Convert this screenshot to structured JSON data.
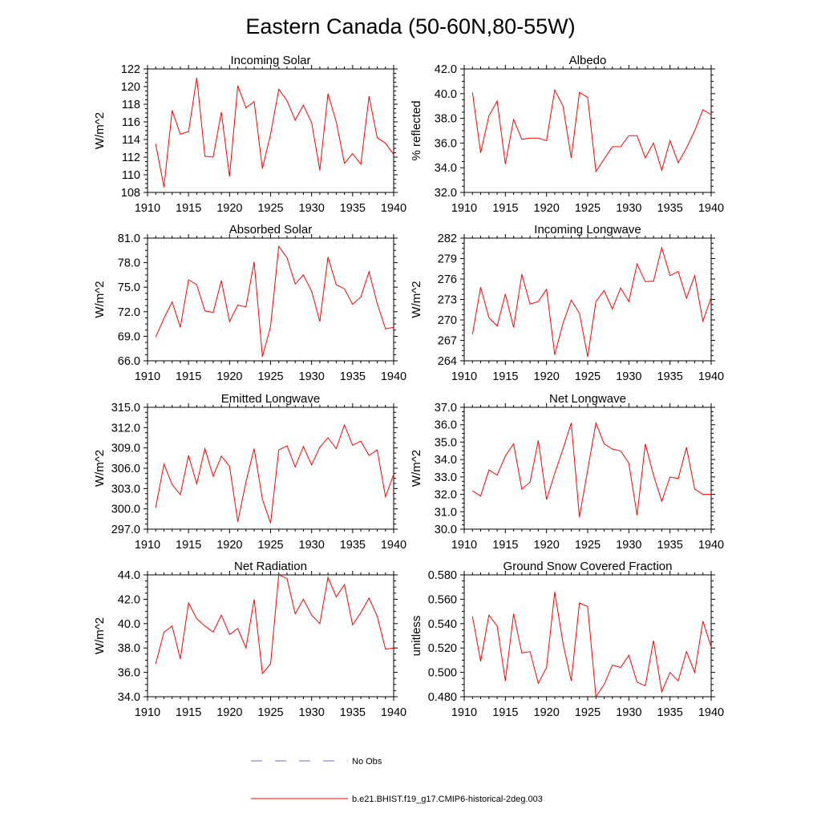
{
  "figure": {
    "title": "Eastern Canada (50-60N,80-55W)"
  },
  "legend": [
    {
      "label": "No Obs",
      "style": "dashed",
      "color": "#6e6ebe"
    },
    {
      "label": "b.e21.BHIST.f19_g17.CMIP6-historical-2deg.003",
      "style": "solid",
      "color": "#ff0000"
    }
  ],
  "chart_data": [
    {
      "type": "line",
      "title": "Incoming Solar",
      "ylabel": "W/m^2",
      "xlim": [
        1910,
        1940
      ],
      "ylim": [
        108,
        122
      ],
      "yticks": [
        "108",
        "110",
        "112",
        "114",
        "116",
        "118",
        "120",
        "122"
      ],
      "xticks": [
        "1910",
        "1915",
        "1920",
        "1925",
        "1930",
        "1935",
        "1940"
      ],
      "color": "#ff0000",
      "x": [
        1911,
        1912,
        1913,
        1914,
        1915,
        1916,
        1917,
        1918,
        1919,
        1920,
        1921,
        1922,
        1923,
        1924,
        1925,
        1926,
        1927,
        1928,
        1929,
        1930,
        1931,
        1932,
        1933,
        1934,
        1935,
        1936,
        1937,
        1938,
        1939,
        1940
      ],
      "values": [
        113.5,
        108.6,
        117.3,
        114.6,
        114.9,
        121.0,
        112.1,
        112.0,
        117.1,
        109.8,
        120.1,
        117.6,
        118.3,
        110.7,
        114.6,
        119.7,
        118.4,
        116.2,
        117.9,
        115.9,
        110.5,
        119.2,
        116.0,
        111.3,
        112.4,
        111.2,
        118.9,
        114.2,
        113.6,
        112.3
      ]
    },
    {
      "type": "line",
      "title": "Albedo",
      "ylabel": "% reflected",
      "xlim": [
        1910,
        1940
      ],
      "ylim": [
        32,
        42
      ],
      "yticks": [
        "32.0",
        "34.0",
        "36.0",
        "38.0",
        "40.0",
        "42.0"
      ],
      "xticks": [
        "1910",
        "1915",
        "1920",
        "1925",
        "1930",
        "1935",
        "1940"
      ],
      "color": "#ff0000",
      "x": [
        1911,
        1912,
        1913,
        1914,
        1915,
        1916,
        1917,
        1918,
        1919,
        1920,
        1921,
        1922,
        1923,
        1924,
        1925,
        1926,
        1927,
        1928,
        1929,
        1930,
        1931,
        1932,
        1933,
        1934,
        1935,
        1936,
        1937,
        1938,
        1939,
        1940
      ],
      "values": [
        40.1,
        35.2,
        38.2,
        39.4,
        34.3,
        37.9,
        36.3,
        36.4,
        36.4,
        36.2,
        40.3,
        39.0,
        34.8,
        40.1,
        39.7,
        33.7,
        34.7,
        35.7,
        35.7,
        36.6,
        36.6,
        34.8,
        36.0,
        33.8,
        36.2,
        34.4,
        35.6,
        37.0,
        38.7,
        38.3
      ]
    },
    {
      "type": "line",
      "title": "Absorbed Solar",
      "ylabel": "W/m^2",
      "xlim": [
        1910,
        1940
      ],
      "ylim": [
        66,
        81
      ],
      "yticks": [
        "66.0",
        "69.0",
        "72.0",
        "75.0",
        "78.0",
        "81.0"
      ],
      "xticks": [
        "1910",
        "1915",
        "1920",
        "1925",
        "1930",
        "1935",
        "1940"
      ],
      "color": "#ff0000",
      "x": [
        1911,
        1912,
        1913,
        1914,
        1915,
        1916,
        1917,
        1918,
        1919,
        1920,
        1921,
        1922,
        1923,
        1924,
        1925,
        1926,
        1927,
        1928,
        1929,
        1930,
        1931,
        1932,
        1933,
        1934,
        1935,
        1936,
        1937,
        1938,
        1939,
        1940
      ],
      "values": [
        68.9,
        71.2,
        73.2,
        70.1,
        75.9,
        75.3,
        72.1,
        71.9,
        75.8,
        70.8,
        72.8,
        72.6,
        78.1,
        66.5,
        70.2,
        80.0,
        78.6,
        75.4,
        76.5,
        74.5,
        70.8,
        78.7,
        75.3,
        74.8,
        72.9,
        73.8,
        76.9,
        73.0,
        69.9,
        70.1
      ]
    },
    {
      "type": "line",
      "title": "Incoming Longwave",
      "ylabel": "W/m^2",
      "xlim": [
        1910,
        1940
      ],
      "ylim": [
        264,
        282
      ],
      "yticks": [
        "264",
        "267",
        "270",
        "273",
        "276",
        "279",
        "282"
      ],
      "xticks": [
        "1910",
        "1915",
        "1920",
        "1925",
        "1930",
        "1935",
        "1940"
      ],
      "color": "#ff0000",
      "x": [
        1911,
        1912,
        1913,
        1914,
        1915,
        1916,
        1917,
        1918,
        1919,
        1920,
        1921,
        1922,
        1923,
        1924,
        1925,
        1926,
        1927,
        1928,
        1929,
        1930,
        1931,
        1932,
        1933,
        1934,
        1935,
        1936,
        1937,
        1938,
        1939,
        1940
      ],
      "values": [
        267.9,
        274.8,
        270.3,
        269.1,
        273.8,
        268.9,
        276.7,
        272.3,
        272.7,
        274.5,
        264.9,
        269.5,
        272.9,
        271.0,
        264.6,
        272.7,
        274.3,
        271.6,
        274.7,
        272.7,
        278.2,
        275.6,
        275.7,
        280.6,
        276.5,
        277.1,
        273.2,
        276.5,
        269.8,
        273.3
      ]
    },
    {
      "type": "line",
      "title": "Emitted Longwave",
      "ylabel": "W/m^2",
      "xlim": [
        1910,
        1940
      ],
      "ylim": [
        297,
        315
      ],
      "yticks": [
        "297.0",
        "300.0",
        "303.0",
        "306.0",
        "309.0",
        "312.0",
        "315.0"
      ],
      "xticks": [
        "1910",
        "1915",
        "1920",
        "1925",
        "1930",
        "1935",
        "1940"
      ],
      "color": "#ff0000",
      "x": [
        1911,
        1912,
        1913,
        1914,
        1915,
        1916,
        1917,
        1918,
        1919,
        1920,
        1921,
        1922,
        1923,
        1924,
        1925,
        1926,
        1927,
        1928,
        1929,
        1930,
        1931,
        1932,
        1933,
        1934,
        1935,
        1936,
        1937,
        1938,
        1939,
        1940
      ],
      "values": [
        300.2,
        306.6,
        303.6,
        302.1,
        307.9,
        303.7,
        308.9,
        304.8,
        307.8,
        306.3,
        298.1,
        304.0,
        308.9,
        301.4,
        297.9,
        308.7,
        309.3,
        306.2,
        309.2,
        306.5,
        309.1,
        310.5,
        308.9,
        312.4,
        309.4,
        310.0,
        307.9,
        308.7,
        301.8,
        305.1
      ]
    },
    {
      "type": "line",
      "title": "Net Longwave",
      "ylabel": "W/m^2",
      "xlim": [
        1910,
        1940
      ],
      "ylim": [
        30,
        37
      ],
      "yticks": [
        "30.0",
        "31.0",
        "32.0",
        "33.0",
        "34.0",
        "35.0",
        "36.0",
        "37.0"
      ],
      "xticks": [
        "1910",
        "1915",
        "1920",
        "1925",
        "1930",
        "1935",
        "1940"
      ],
      "color": "#ff0000",
      "x": [
        1911,
        1912,
        1913,
        1914,
        1915,
        1916,
        1917,
        1918,
        1919,
        1920,
        1921,
        1922,
        1923,
        1924,
        1925,
        1926,
        1927,
        1928,
        1929,
        1930,
        1931,
        1932,
        1933,
        1934,
        1935,
        1936,
        1937,
        1938,
        1939,
        1940
      ],
      "values": [
        32.2,
        31.9,
        33.4,
        33.1,
        34.2,
        34.9,
        32.3,
        32.7,
        35.1,
        31.7,
        33.2,
        34.6,
        36.1,
        30.7,
        33.4,
        36.1,
        34.9,
        34.6,
        34.5,
        33.8,
        30.8,
        34.9,
        33.1,
        31.6,
        33.0,
        32.9,
        34.7,
        32.3,
        32.0,
        32.0
      ]
    },
    {
      "type": "line",
      "title": "Net Radiation",
      "ylabel": "W/m^2",
      "xlim": [
        1910,
        1940
      ],
      "ylim": [
        34,
        44
      ],
      "yticks": [
        "34.0",
        "36.0",
        "38.0",
        "40.0",
        "42.0",
        "44.0"
      ],
      "xticks": [
        "1910",
        "1915",
        "1920",
        "1925",
        "1930",
        "1935",
        "1940"
      ],
      "color": "#ff0000",
      "x": [
        1911,
        1912,
        1913,
        1914,
        1915,
        1916,
        1917,
        1918,
        1919,
        1920,
        1921,
        1922,
        1923,
        1924,
        1925,
        1926,
        1927,
        1928,
        1929,
        1930,
        1931,
        1932,
        1933,
        1934,
        1935,
        1936,
        1937,
        1938,
        1939,
        1940
      ],
      "values": [
        36.7,
        39.3,
        39.8,
        37.1,
        41.7,
        40.4,
        39.8,
        39.3,
        40.7,
        39.1,
        39.6,
        38.0,
        42.0,
        35.9,
        36.7,
        44.0,
        43.7,
        40.8,
        42.0,
        40.7,
        40.0,
        43.8,
        42.2,
        43.2,
        39.9,
        40.9,
        42.1,
        40.6,
        37.9,
        38.0
      ]
    },
    {
      "type": "line",
      "title": "Ground Snow Covered Fraction",
      "ylabel": "unitless",
      "xlim": [
        1910,
        1940
      ],
      "ylim": [
        0.48,
        0.58
      ],
      "yticks": [
        "0.480",
        "0.500",
        "0.520",
        "0.540",
        "0.560",
        "0.580"
      ],
      "xticks": [
        "1910",
        "1915",
        "1920",
        "1925",
        "1930",
        "1935",
        "1940"
      ],
      "color": "#ff0000",
      "x": [
        1911,
        1912,
        1913,
        1914,
        1915,
        1916,
        1917,
        1918,
        1919,
        1920,
        1921,
        1922,
        1923,
        1924,
        1925,
        1926,
        1927,
        1928,
        1929,
        1930,
        1931,
        1932,
        1933,
        1934,
        1935,
        1936,
        1937,
        1938,
        1939,
        1940
      ],
      "values": [
        0.546,
        0.509,
        0.547,
        0.538,
        0.493,
        0.548,
        0.516,
        0.517,
        0.491,
        0.504,
        0.566,
        0.524,
        0.493,
        0.557,
        0.554,
        0.48,
        0.49,
        0.506,
        0.504,
        0.514,
        0.492,
        0.489,
        0.526,
        0.484,
        0.5,
        0.493,
        0.517,
        0.5,
        0.542,
        0.521
      ]
    }
  ]
}
